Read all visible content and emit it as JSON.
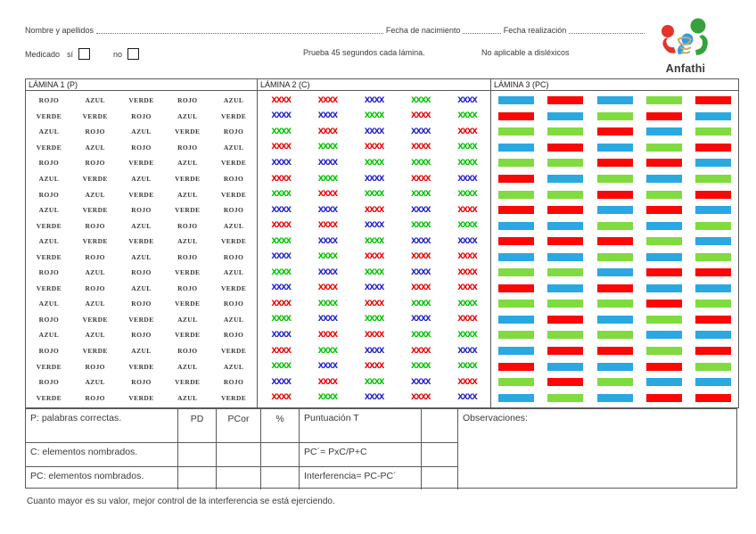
{
  "header": {
    "nombre_label": "Nombre y apellidos",
    "fecha_nacimiento_label": "Fecha de nacimiento",
    "fecha_realizacion_label": "Fecha realización",
    "medicado_label": "Medicado",
    "si_label": "sí",
    "no_label": "no",
    "prueba_label": "Prueba 45 segundos cada lámina.",
    "dislexicos_label": "No aplicable a disléxicos",
    "logo_text": "Anfathi"
  },
  "colors": {
    "x": {
      "R": "#ee0404",
      "G": "#00c400",
      "B": "#2424cd"
    },
    "bar": {
      "R": "#fb0806",
      "G": "#7fdb3e",
      "B": "#29a8e2"
    },
    "logo": {
      "red": "#e5332a",
      "green": "#35a23c",
      "blue": "#2b9de4",
      "tan": "#c9a96e",
      "text": "#1f8fe0"
    }
  },
  "laminas": {
    "lamina1": {
      "title": "LÁMINA 1 (P)",
      "rows": [
        [
          "ROJO",
          "AZUL",
          "VERDE",
          "ROJO",
          "AZUL"
        ],
        [
          "VERDE",
          "VERDE",
          "ROJO",
          "AZUL",
          "VERDE"
        ],
        [
          "AZUL",
          "ROJO",
          "AZUL",
          "VERDE",
          "ROJO"
        ],
        [
          "VERDE",
          "AZUL",
          "ROJO",
          "ROJO",
          "AZUL"
        ],
        [
          "ROJO",
          "ROJO",
          "VERDE",
          "AZUL",
          "VERDE"
        ],
        [
          "AZUL",
          "VERDE",
          "AZUL",
          "VERDE",
          "ROJO"
        ],
        [
          "ROJO",
          "AZUL",
          "VERDE",
          "AZUL",
          "VERDE"
        ],
        [
          "AZUL",
          "VERDE",
          "ROJO",
          "VERDE",
          "ROJO"
        ],
        [
          "VERDE",
          "ROJO",
          "AZUL",
          "ROJO",
          "AZUL"
        ],
        [
          "AZUL",
          "VERDE",
          "VERDE",
          "AZUL",
          "VERDE"
        ],
        [
          "VERDE",
          "ROJO",
          "AZUL",
          "ROJO",
          "ROJO"
        ],
        [
          "ROJO",
          "AZUL",
          "ROJO",
          "VERDE",
          "AZUL"
        ],
        [
          "VERDE",
          "ROJO",
          "AZUL",
          "ROJO",
          "VERDE"
        ],
        [
          "AZUL",
          "AZUL",
          "ROJO",
          "VERDE",
          "ROJO"
        ],
        [
          "ROJO",
          "VERDE",
          "VERDE",
          "AZUL",
          "AZUL"
        ],
        [
          "AZUL",
          "AZUL",
          "ROJO",
          "VERDE",
          "ROJO"
        ],
        [
          "ROJO",
          "VERDE",
          "AZUL",
          "ROJO",
          "VERDE"
        ],
        [
          "VERDE",
          "ROJO",
          "VERDE",
          "AZUL",
          "AZUL"
        ],
        [
          "ROJO",
          "AZUL",
          "ROJO",
          "VERDE",
          "ROJO"
        ],
        [
          "VERDE",
          "ROJO",
          "VERDE",
          "AZUL",
          "VERDE"
        ]
      ]
    },
    "lamina2": {
      "title": "LÁMINA 2 (C)",
      "x_text": "XXXX",
      "rows": [
        "RRBGB",
        "BBGRG",
        "GRBBR",
        "RGRRG",
        "BBGGG",
        "RGBRB",
        "GRGGG",
        "BBRBR",
        "RRBGG",
        "GBGBB",
        "BGRRR",
        "GBGBR",
        "BRBRR",
        "RGRGG",
        "GBGBR",
        "BRRGG",
        "RGBRB",
        "GBRGG",
        "BRGBR",
        "RGBRB"
      ]
    },
    "lamina3": {
      "title": "LÁMINA 3 (PC)",
      "rows": [
        "BRBGR",
        "RBGRB",
        "GGRBG",
        "BRBGR",
        "GGRRB",
        "RBGBG",
        "GGRGR",
        "RRBRB",
        "BBGBG",
        "RRRGB",
        "BBGBG",
        "GGBRR",
        "RBRBB",
        "GGGRG",
        "BRBGR",
        "GGGBB",
        "BRRGR",
        "RBBRG",
        "GRGBB",
        "BGBRR"
      ]
    }
  },
  "score_table": {
    "rows": [
      {
        "label": "P: palabras correctas.",
        "c1": "PD",
        "c2": "PCor",
        "c3": "%",
        "formula": "Puntuación T"
      },
      {
        "label": "C: elementos nombrados.",
        "c1": "",
        "c2": "",
        "c3": "",
        "formula": "PC´= PxC/P+C"
      },
      {
        "label": "PC: elementos nombrados.",
        "c1": "",
        "c2": "",
        "c3": "",
        "formula": "Interferencia= PC-PC´"
      }
    ],
    "observaciones_label": "Observaciones:"
  },
  "footer_note": "Cuanto mayor es su valor, mejor control de la interferencia se está ejerciendo."
}
